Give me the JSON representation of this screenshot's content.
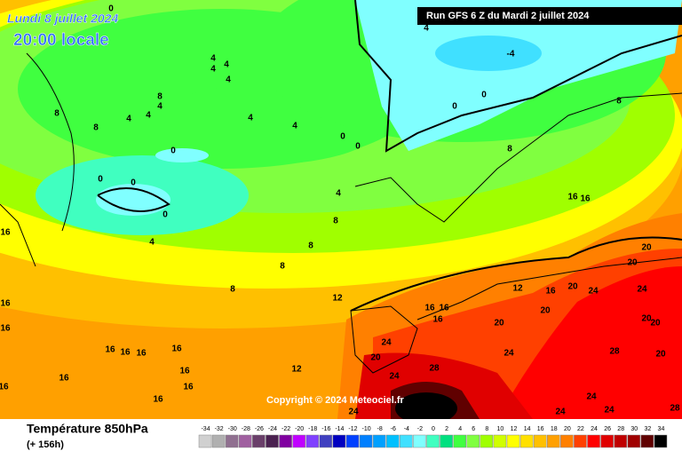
{
  "header": {
    "date": "Lundi 8 juillet 2024",
    "time": "20:00 locale",
    "run": "Run GFS 6 Z du Mardi 2 juillet 2024"
  },
  "copyright": "Copyright © 2024 Meteociel.fr",
  "footer": {
    "title": "Température 850hPa",
    "lead": "(+ 156h)"
  },
  "scale": {
    "values": [
      -34,
      -32,
      -30,
      -28,
      -26,
      -24,
      -22,
      -20,
      -18,
      -16,
      -14,
      -12,
      -10,
      -8,
      -6,
      -4,
      -2,
      0,
      2,
      4,
      6,
      8,
      10,
      12,
      14,
      16,
      18,
      20,
      22,
      24,
      26,
      28,
      30,
      32,
      34
    ],
    "colors": [
      "#d0d0d0",
      "#b0b0b0",
      "#907090",
      "#a060a0",
      "#6a3f6a",
      "#4a2050",
      "#8000a0",
      "#c000ff",
      "#8040ff",
      "#4040c0",
      "#0000c0",
      "#0040ff",
      "#0080ff",
      "#00a0ff",
      "#00c0ff",
      "#40e0ff",
      "#80ffff",
      "#40ffc0",
      "#00e080",
      "#40ff40",
      "#80ff40",
      "#a0ff00",
      "#d0ff00",
      "#ffff00",
      "#ffe000",
      "#ffc000",
      "#ffa000",
      "#ff8000",
      "#ff4000",
      "#ff0000",
      "#e00000",
      "#c00000",
      "#a00000",
      "#600000",
      "#000000"
    ]
  },
  "contour_labels": [
    0,
    4,
    -4,
    0,
    0,
    4,
    4,
    4,
    4,
    8,
    4,
    4,
    4,
    8,
    8,
    4,
    4,
    0,
    0,
    0,
    0,
    0,
    0,
    4,
    8,
    4,
    16,
    8,
    8,
    8,
    12,
    8,
    8,
    16,
    16,
    20,
    20,
    12,
    16,
    20,
    24,
    24,
    16,
    16,
    16,
    20,
    20,
    20,
    20,
    24,
    28,
    20,
    16,
    16,
    16,
    16,
    24,
    20,
    16,
    12,
    28,
    24,
    16,
    16,
    16,
    16,
    24,
    24,
    24,
    24,
    28,
    16,
    16
  ]
}
